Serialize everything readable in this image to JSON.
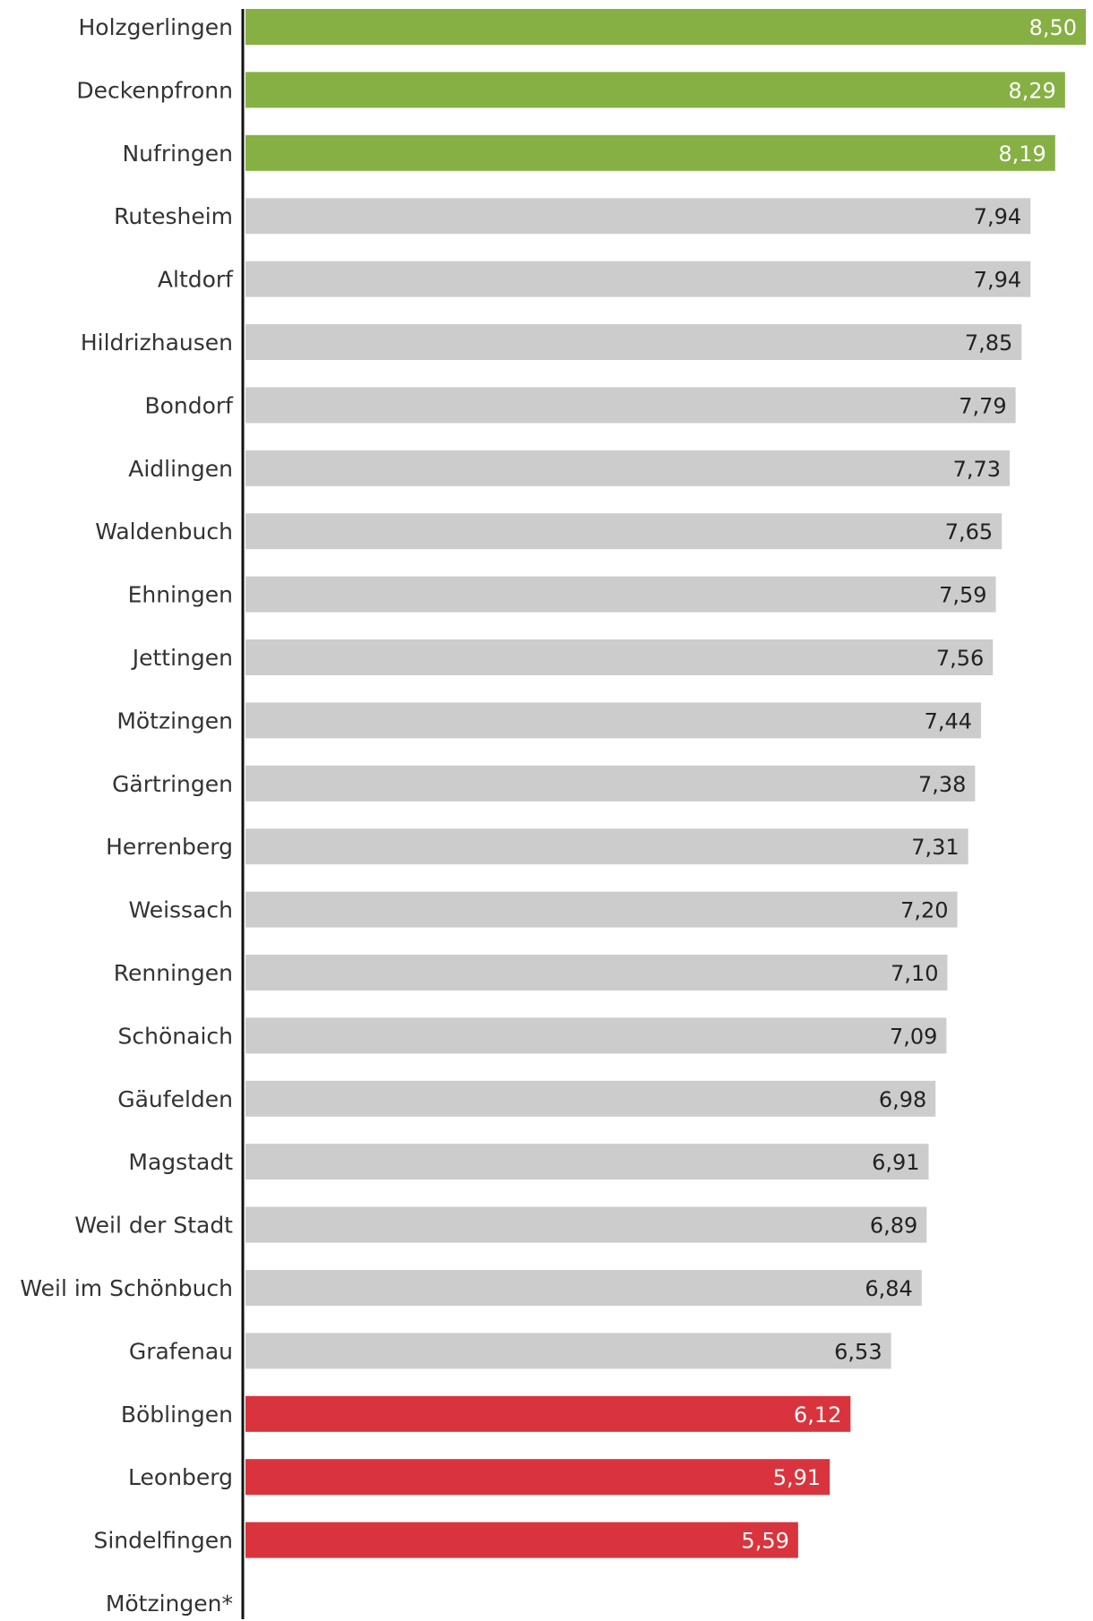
{
  "chart_data": {
    "type": "bar",
    "orientation": "horizontal",
    "title": "",
    "xlabel": "",
    "ylabel": "",
    "xlim": [
      0,
      8.5
    ],
    "grid": false,
    "legend": "none",
    "categories": [
      "Holzgerlingen",
      "Deckenpfronn",
      "Nufringen",
      "Rutesheim",
      "Altdorf",
      "Hildrizhausen",
      "Bondorf",
      "Aidlingen",
      "Waldenbuch",
      "Ehningen",
      "Jettingen",
      "Mötzingen",
      "Gärtringen",
      "Herrenberg",
      "Weissach",
      "Renningen",
      "Schönaich",
      "Gäufelden",
      "Magstadt",
      "Weil der Stadt",
      "Weil im Schönbuch",
      "Grafenau",
      "Böblingen",
      "Leonberg",
      "Sindelfingen",
      "Mötzingen*"
    ],
    "values": [
      8.5,
      8.29,
      8.19,
      7.94,
      7.94,
      7.85,
      7.79,
      7.73,
      7.65,
      7.59,
      7.56,
      7.44,
      7.38,
      7.31,
      7.2,
      7.1,
      7.09,
      6.98,
      6.91,
      6.89,
      6.84,
      6.53,
      6.12,
      5.91,
      5.59,
      null
    ],
    "value_labels": [
      "8,50",
      "8,29",
      "8,19",
      "7,94",
      "7,94",
      "7,85",
      "7,79",
      "7,73",
      "7,65",
      "7,59",
      "7,56",
      "7,44",
      "7,38",
      "7,31",
      "7,20",
      "7,10",
      "7,09",
      "6,98",
      "6,91",
      "6,89",
      "6,84",
      "6,53",
      "6,12",
      "5,91",
      "5,59",
      ""
    ],
    "bar_groups": [
      "top",
      "top",
      "top",
      "mid",
      "mid",
      "mid",
      "mid",
      "mid",
      "mid",
      "mid",
      "mid",
      "mid",
      "mid",
      "mid",
      "mid",
      "mid",
      "mid",
      "mid",
      "mid",
      "mid",
      "mid",
      "mid",
      "bottom",
      "bottom",
      "bottom",
      "none"
    ],
    "colors": {
      "top": "#86b043",
      "mid": "#cccccc",
      "bottom": "#d9343d",
      "axis": "#111111",
      "label_on_dark": "#ffffff",
      "label_on_light": "#222222",
      "category_text": "#333333"
    }
  }
}
